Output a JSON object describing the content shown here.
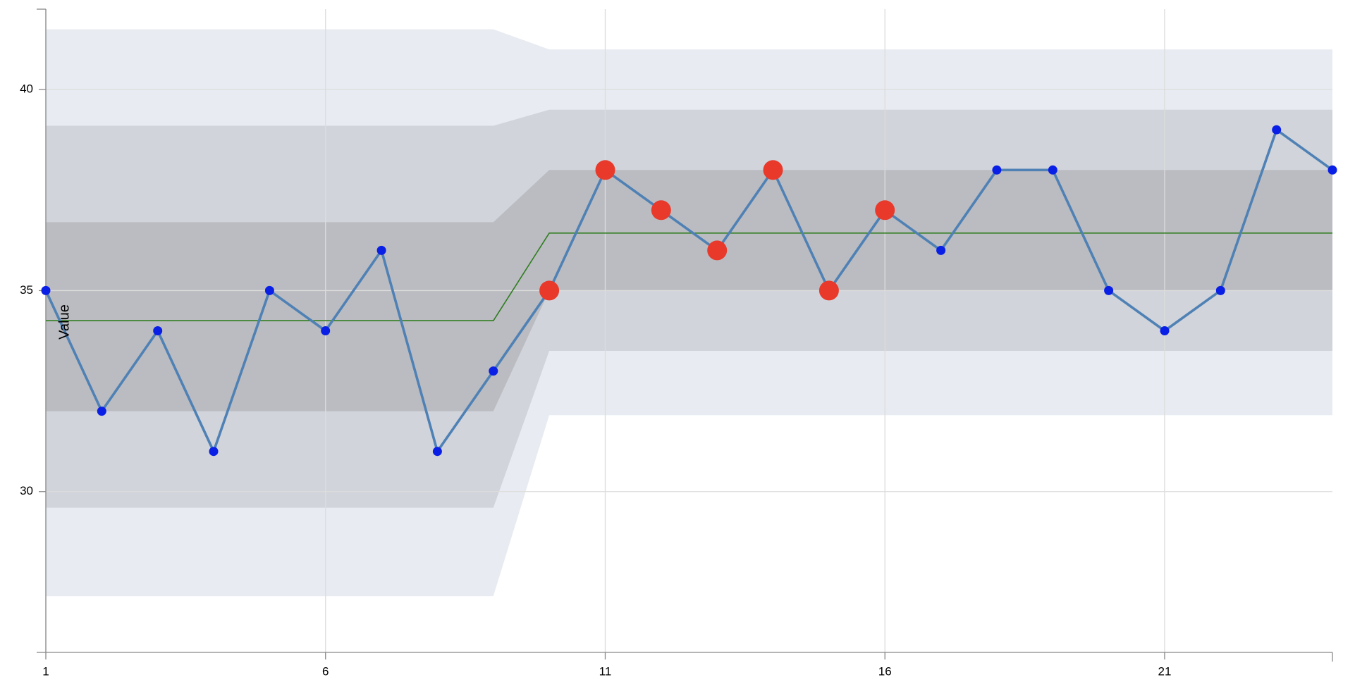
{
  "chart_data": {
    "type": "line",
    "title": "",
    "xlabel": "",
    "ylabel": "Value",
    "xlim": [
      1,
      24
    ],
    "ylim": [
      26,
      42
    ],
    "grid": true,
    "x_ticks": [
      1,
      6,
      11,
      16,
      21
    ],
    "y_ticks": [
      30,
      35,
      40
    ],
    "x": [
      1,
      2,
      3,
      4,
      5,
      6,
      7,
      8,
      9,
      10,
      11,
      12,
      13,
      14,
      15,
      16,
      17,
      18,
      19,
      20,
      21,
      22,
      23,
      24
    ],
    "series": [
      {
        "values": [
          35,
          32,
          34,
          31,
          35,
          34,
          36,
          31,
          33,
          35,
          38,
          37,
          36,
          38,
          35,
          37,
          36,
          38,
          38,
          35,
          34,
          35,
          39,
          38
        ],
        "color": "#4f81b5",
        "point_color": "#0a1fe6",
        "highlight_color": "#e8392b",
        "highlighted_x": [
          10,
          11,
          12,
          13,
          14,
          15,
          16
        ]
      }
    ],
    "center_line": {
      "color": "#2e7d1f",
      "segments": [
        {
          "x": [
            1,
            9
          ],
          "value": 34.25
        },
        {
          "x": [
            10,
            24
          ],
          "value": 36.43
        }
      ]
    },
    "bands": {
      "colors": {
        "outer": "#e8ecf2",
        "middle": "#d1d4db",
        "inner": "#bbbcc1"
      },
      "segments": [
        {
          "x": [
            1,
            9
          ],
          "outer": [
            27.4,
            41.5
          ],
          "middle": [
            29.6,
            39.1
          ],
          "inner": [
            32.0,
            36.7
          ]
        },
        {
          "x": [
            10,
            24
          ],
          "outer": [
            31.9,
            41.0
          ],
          "middle": [
            33.5,
            39.5
          ],
          "inner": [
            35.0,
            38.0
          ]
        }
      ]
    }
  }
}
